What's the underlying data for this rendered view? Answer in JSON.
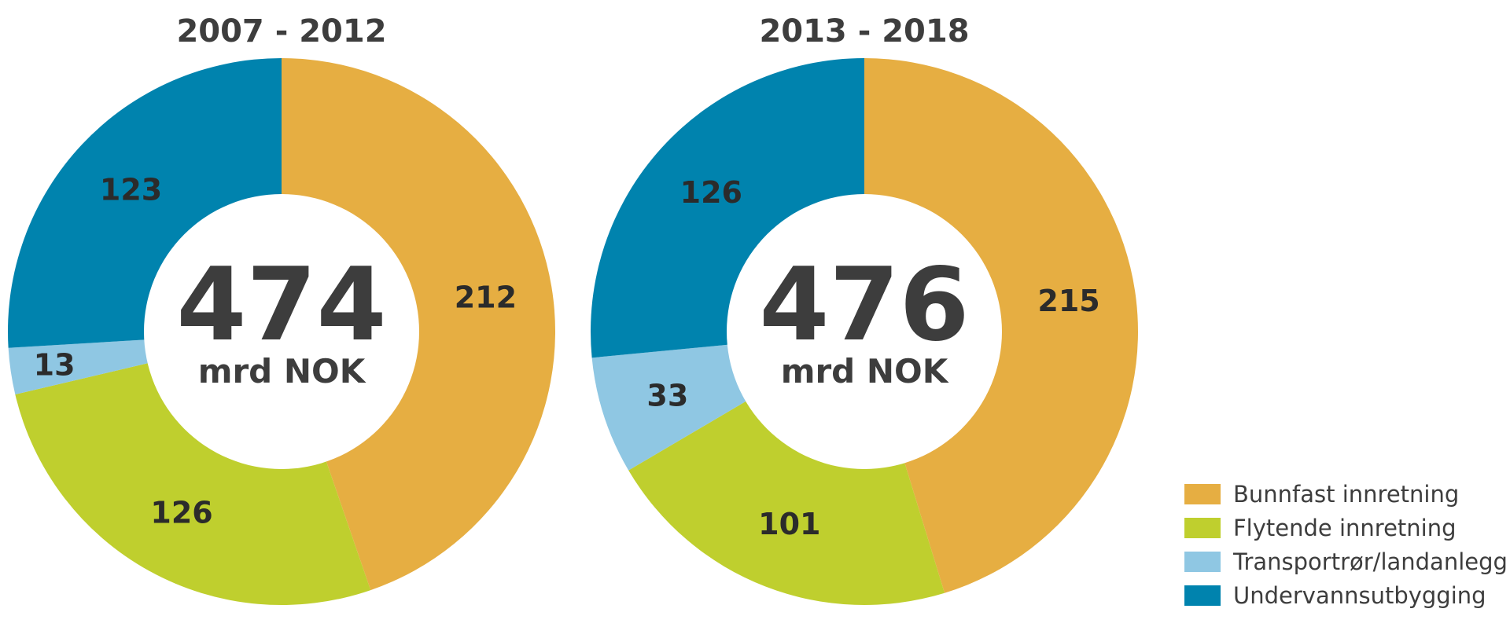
{
  "chart_data": [
    {
      "type": "pie",
      "variant": "donut",
      "title": "2007 - 2012",
      "total": "474",
      "unit": "mrd NOK",
      "categories": [
        "Bunnfast innretning",
        "Flytende innretning",
        "Transportrør/landanlegg",
        "Undervannsutbygging"
      ],
      "values": [
        212,
        126,
        13,
        123
      ]
    },
    {
      "type": "pie",
      "variant": "donut",
      "title": "2013 - 2018",
      "total": "476",
      "unit": "mrd NOK",
      "categories": [
        "Bunnfast innretning",
        "Flytende innretning",
        "Transportrør/landanlegg",
        "Undervannsutbygging"
      ],
      "values": [
        215,
        101,
        33,
        126
      ]
    }
  ],
  "legend": {
    "placement": "bottom-right",
    "items": [
      {
        "label": "Bunnfast innretning",
        "color": "#e6ae42"
      },
      {
        "label": "Flytende innretning",
        "color": "#bfcf2e"
      },
      {
        "label": "Transportrør/landanlegg",
        "color": "#8fc7e3"
      },
      {
        "label": "Undervannsutbygging",
        "color": "#0083ae"
      }
    ]
  }
}
